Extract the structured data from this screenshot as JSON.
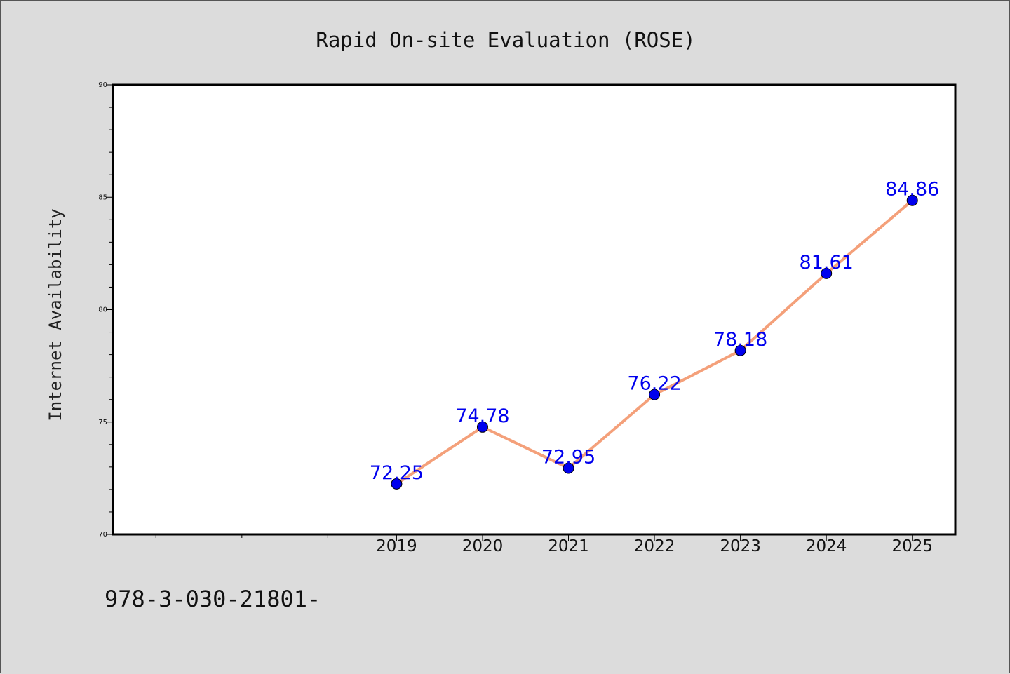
{
  "chart_data": {
    "type": "line",
    "title": "Rapid On-site Evaluation (ROSE)",
    "xlabel": "",
    "ylabel": "Internet Availability",
    "x": [
      2019,
      2020,
      2021,
      2022,
      2023,
      2024,
      2025
    ],
    "series": [
      {
        "values": [
          72.25,
          74.78,
          72.95,
          76.22,
          78.18,
          81.61,
          84.86
        ],
        "data_labels": [
          "72.25",
          "74.78",
          "72.95",
          "76.22",
          "78.18",
          "81.61",
          "84.86"
        ],
        "line_color": "#f4a07a",
        "marker_color": "#0000ee",
        "label_color": "#0000ee"
      }
    ],
    "xlim": [
      2015.7,
      2025.5
    ],
    "ylim": [
      70,
      90
    ],
    "yticks": [
      70,
      75,
      80,
      85,
      90
    ],
    "ytick_labels": [
      "70",
      "75",
      "80",
      "85",
      "90"
    ],
    "xticks": [
      2019,
      2020,
      2021,
      2022,
      2023,
      2024,
      2025
    ],
    "xtick_labels": [
      "2019",
      "2020",
      "2021",
      "2022",
      "2023",
      "2024",
      "2025"
    ],
    "x_minor_ticks": [
      2016.2,
      2017.2,
      2018.2
    ],
    "y_minor_step": 1,
    "grid": false,
    "legend": "none",
    "footnote": "978-3-030-21801-"
  }
}
